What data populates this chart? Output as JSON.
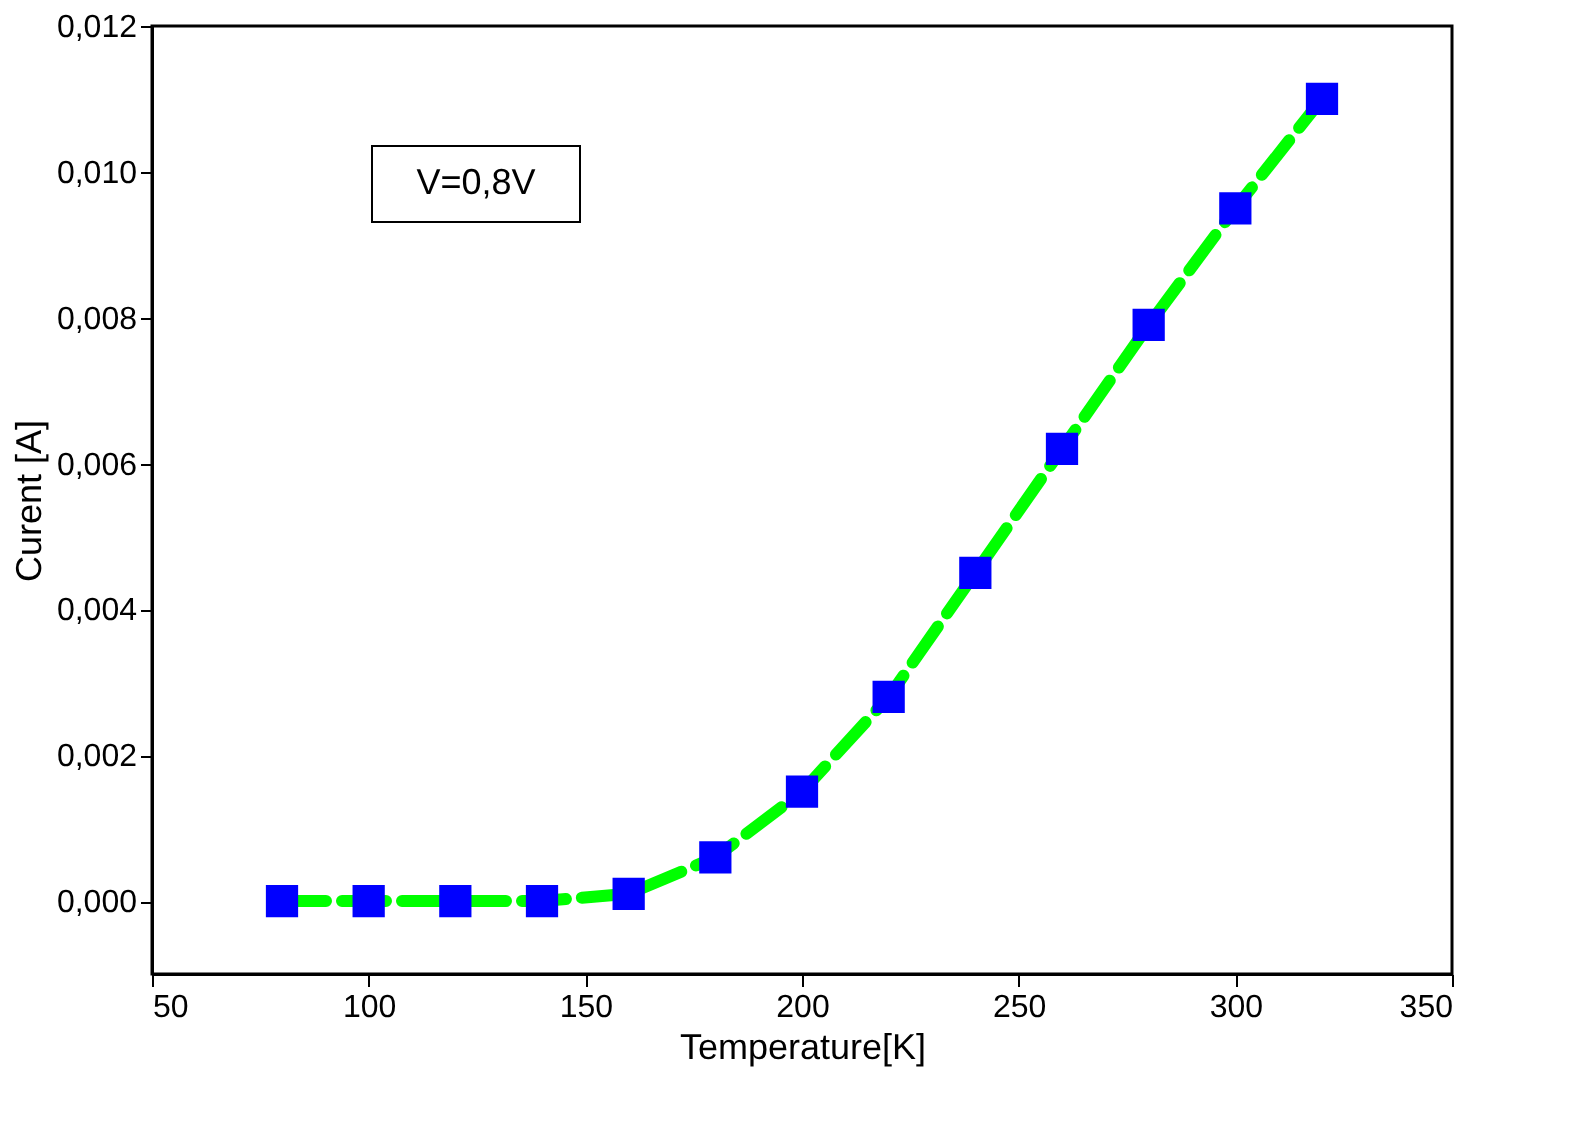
{
  "chart_data": {
    "type": "line",
    "xlabel": "Temperature[K]",
    "ylabel": "Curent [A]",
    "x": [
      80,
      100,
      120,
      140,
      160,
      180,
      200,
      220,
      240,
      260,
      280,
      300,
      320
    ],
    "series": [
      {
        "color": "#00ff00",
        "colors": [
          "#0000ff",
          "#0000ff",
          "#0000ff",
          "#0000ff",
          "#0000ff",
          "#0000ff",
          "#0000ff",
          "#0000ff",
          "#0000ff",
          "#0000ff",
          "#0000ff",
          "#0000ff",
          "#0000ff"
        ],
        "values": [
          0,
          0,
          0,
          0,
          0.0001,
          0.0006,
          0.0015,
          0.0028,
          0.0045,
          0.0062,
          0.0079,
          0.0095,
          0.011
        ]
      }
    ],
    "marker": "square",
    "line_style": "dashed",
    "grid": false,
    "xlim": [
      50,
      350
    ],
    "xticks": [
      50,
      100,
      150,
      200,
      250,
      300,
      350
    ],
    "ylim": [
      -0.001,
      0.012
    ],
    "yticks": [
      {
        "value": 0,
        "label": "0,000"
      },
      {
        "value": 0.002,
        "label": "0,002"
      },
      {
        "value": 0.004,
        "label": "0,004"
      },
      {
        "value": 0.006,
        "label": "0,006"
      },
      {
        "value": 0.008,
        "label": "0,008"
      },
      {
        "value": 0.01,
        "label": "0,010"
      },
      {
        "value": 0.012,
        "label": "0,012"
      }
    ],
    "annotations": [
      "V=0,8V"
    ]
  }
}
